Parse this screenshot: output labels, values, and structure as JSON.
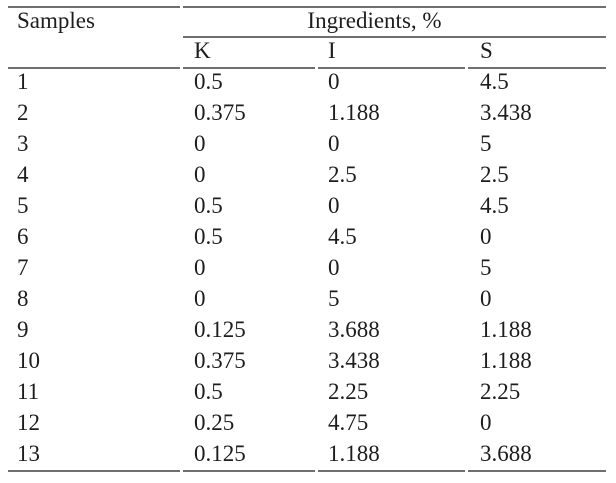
{
  "page": {
    "background": "#ffffff"
  },
  "colors": {
    "rule": "#6f6f6f",
    "text": "#1d1d1d"
  },
  "table": {
    "samples_header": "Samples",
    "group_header": "Ingredients, %",
    "sub_headers": [
      "K",
      "I",
      "S"
    ],
    "rows": [
      [
        "1",
        "0.5",
        "0",
        "4.5"
      ],
      [
        "2",
        "0.375",
        "1.188",
        "3.438"
      ],
      [
        "3",
        "0",
        "0",
        "5"
      ],
      [
        "4",
        "0",
        "2.5",
        "2.5"
      ],
      [
        "5",
        "0.5",
        "0",
        "4.5"
      ],
      [
        "6",
        "0.5",
        "4.5",
        "0"
      ],
      [
        "7",
        "0",
        "0",
        "5"
      ],
      [
        "8",
        "0",
        "5",
        "0"
      ],
      [
        "9",
        "0.125",
        "3.688",
        "1.188"
      ],
      [
        "10",
        "0.375",
        "3.438",
        "1.188"
      ],
      [
        "11",
        "0.5",
        "2.25",
        "2.25"
      ],
      [
        "12",
        "0.25",
        "4.75",
        "0"
      ],
      [
        "13",
        "0.125",
        "1.188",
        "3.688"
      ]
    ]
  },
  "chart_data": {
    "type": "table",
    "title": "",
    "columns": [
      "Samples",
      "K",
      "I",
      "S"
    ],
    "group_header": {
      "label": "Ingredients, %",
      "spans": [
        "K",
        "I",
        "S"
      ]
    },
    "rows": [
      [
        1,
        0.5,
        0,
        4.5
      ],
      [
        2,
        0.375,
        1.188,
        3.438
      ],
      [
        3,
        0,
        0,
        5
      ],
      [
        4,
        0,
        2.5,
        2.5
      ],
      [
        5,
        0.5,
        0,
        4.5
      ],
      [
        6,
        0.5,
        4.5,
        0
      ],
      [
        7,
        0,
        0,
        5
      ],
      [
        8,
        0,
        5,
        0
      ],
      [
        9,
        0.125,
        3.688,
        1.188
      ],
      [
        10,
        0.375,
        3.438,
        1.188
      ],
      [
        11,
        0.5,
        2.25,
        2.25
      ],
      [
        12,
        0.25,
        4.75,
        0
      ],
      [
        13,
        0.125,
        1.188,
        3.688
      ]
    ]
  }
}
